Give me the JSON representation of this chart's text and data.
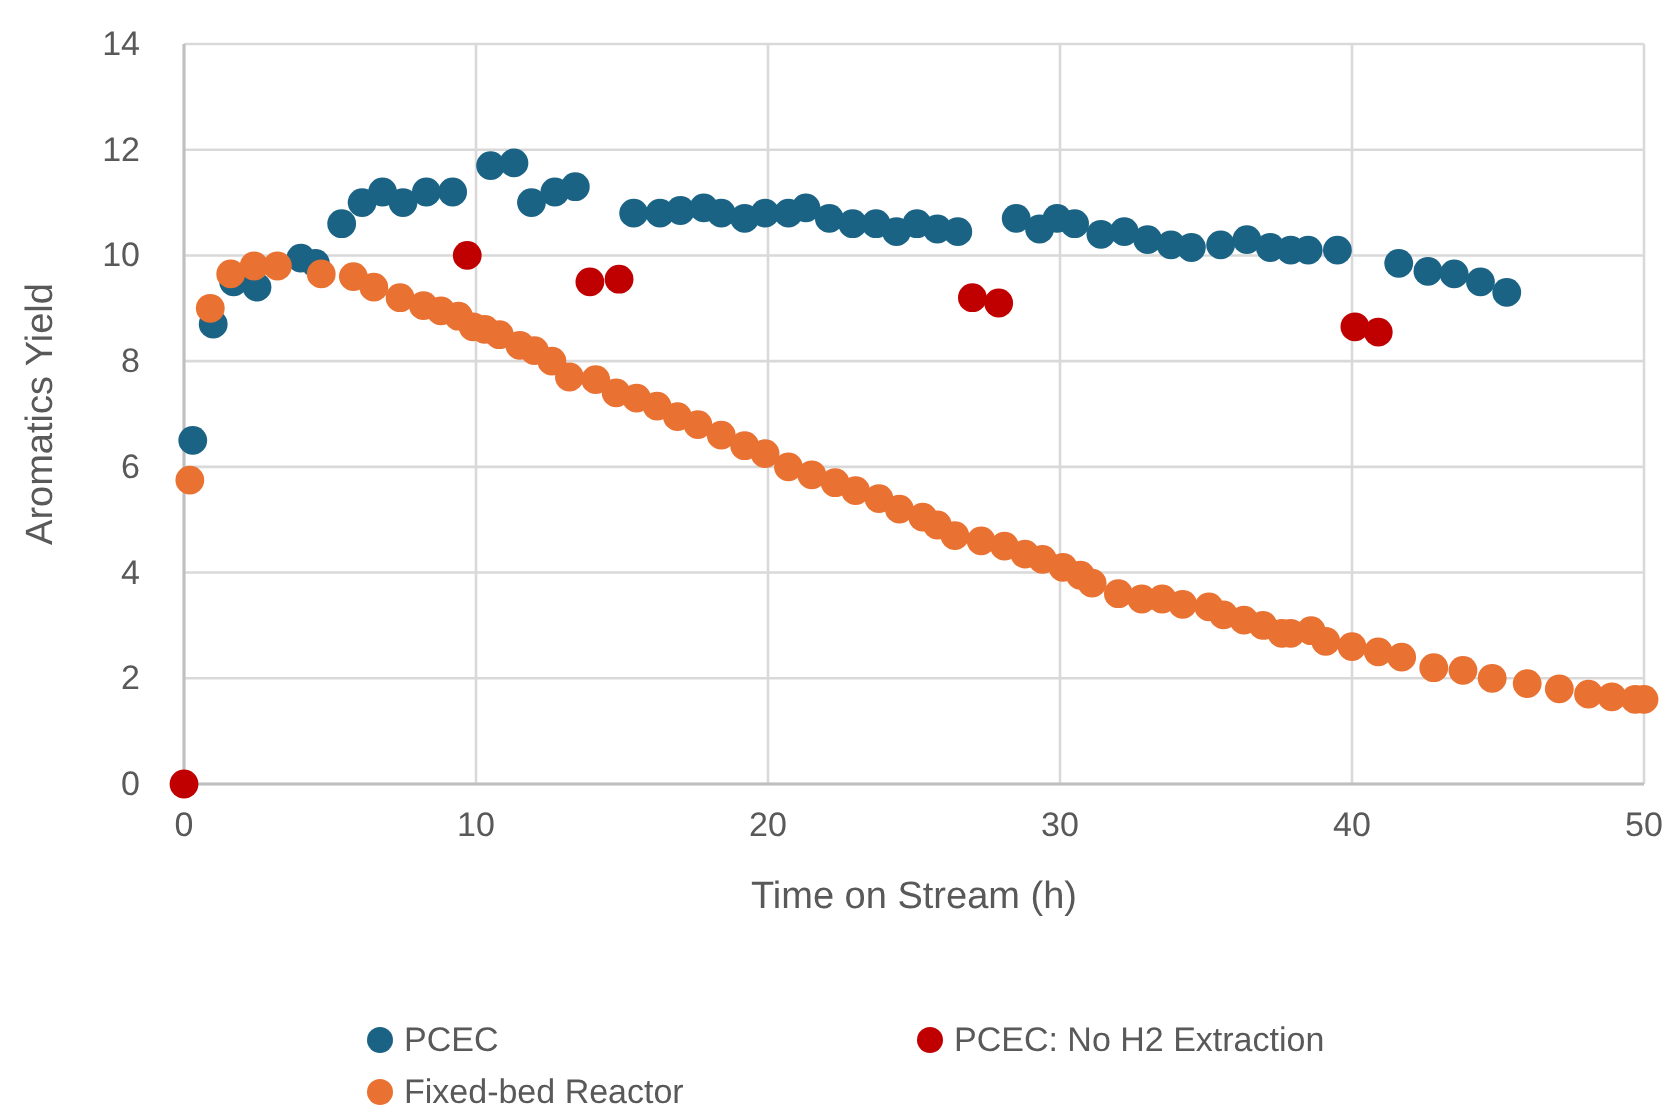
{
  "chart_data": {
    "type": "scatter",
    "xlabel": "Time on Stream (h)",
    "ylabel": "Aromatics Yield",
    "xlim": [
      0,
      50
    ],
    "xticks": [
      0,
      10,
      20,
      30,
      40,
      50
    ],
    "ylim": [
      0,
      14
    ],
    "yticks": [
      0,
      2,
      4,
      6,
      8,
      10,
      12,
      14
    ],
    "grid": true,
    "legend": "bottom",
    "marker": "circle",
    "series": [
      {
        "name": "PCEC",
        "color": "#1a6385",
        "x": [
          0.3,
          1.0,
          1.7,
          2.5,
          4.0,
          4.5,
          5.4,
          6.1,
          6.8,
          7.5,
          8.3,
          9.2,
          10.5,
          11.3,
          11.9,
          12.7,
          13.4,
          15.4,
          16.3,
          17.0,
          17.8,
          18.4,
          19.2,
          19.9,
          20.7,
          21.3,
          22.1,
          22.9,
          23.7,
          24.4,
          25.1,
          25.8,
          26.5,
          28.5,
          29.3,
          29.9,
          30.5,
          31.4,
          32.2,
          33.0,
          33.8,
          34.5,
          35.5,
          36.4,
          37.2,
          37.9,
          38.5,
          39.5,
          41.6,
          42.6,
          43.5,
          44.4,
          45.3
        ],
        "values": [
          6.5,
          8.7,
          9.5,
          9.4,
          9.95,
          9.85,
          10.6,
          11.0,
          11.2,
          11.0,
          11.2,
          11.2,
          11.7,
          11.75,
          11.0,
          11.2,
          11.3,
          10.8,
          10.8,
          10.85,
          10.9,
          10.8,
          10.7,
          10.8,
          10.8,
          10.9,
          10.7,
          10.6,
          10.6,
          10.45,
          10.6,
          10.5,
          10.45,
          10.7,
          10.5,
          10.7,
          10.6,
          10.4,
          10.45,
          10.3,
          10.2,
          10.15,
          10.2,
          10.3,
          10.15,
          10.1,
          10.1,
          10.1,
          9.85,
          9.7,
          9.65,
          9.5,
          9.3
        ]
      },
      {
        "name": "PCEC: No H2 Extraction",
        "color": "#c00000",
        "x": [
          0,
          9.7,
          13.9,
          14.9,
          27.0,
          27.9,
          40.1,
          40.9
        ],
        "values": [
          0,
          10.0,
          9.5,
          9.55,
          9.2,
          9.1,
          8.65,
          8.55
        ]
      },
      {
        "name": "Fixed-bed Reactor",
        "color": "#e97132",
        "x": [
          0.2,
          0.9,
          1.6,
          2.4,
          3.2,
          4.7,
          5.8,
          6.5,
          7.4,
          8.2,
          8.8,
          9.4,
          9.9,
          10.3,
          10.8,
          11.5,
          12.0,
          12.6,
          13.2,
          14.1,
          14.8,
          15.5,
          16.2,
          16.9,
          17.6,
          18.4,
          19.2,
          19.9,
          20.7,
          21.5,
          22.3,
          23.0,
          23.8,
          24.5,
          25.3,
          25.8,
          26.4,
          27.3,
          28.1,
          28.8,
          29.4,
          30.1,
          30.7,
          31.1,
          32.0,
          32.8,
          33.5,
          34.2,
          35.1,
          35.6,
          36.3,
          36.95,
          37.6,
          37.9,
          38.6,
          39.1,
          40.0,
          40.9,
          41.7,
          42.8,
          43.8,
          44.8,
          46.0,
          47.1,
          48.1,
          48.9,
          49.7,
          50.0
        ],
        "values": [
          5.75,
          9.0,
          9.65,
          9.8,
          9.8,
          9.65,
          9.6,
          9.4,
          9.2,
          9.05,
          8.95,
          8.85,
          8.65,
          8.6,
          8.5,
          8.3,
          8.2,
          8.0,
          7.7,
          7.65,
          7.4,
          7.3,
          7.15,
          6.95,
          6.8,
          6.6,
          6.4,
          6.25,
          6.0,
          5.85,
          5.7,
          5.55,
          5.4,
          5.2,
          5.05,
          4.9,
          4.7,
          4.6,
          4.5,
          4.35,
          4.25,
          4.1,
          3.95,
          3.8,
          3.6,
          3.5,
          3.5,
          3.4,
          3.35,
          3.2,
          3.1,
          3.0,
          2.85,
          2.85,
          2.9,
          2.7,
          2.6,
          2.5,
          2.4,
          2.2,
          2.15,
          2.0,
          1.9,
          1.8,
          1.7,
          1.65,
          1.6,
          1.6
        ]
      }
    ]
  }
}
